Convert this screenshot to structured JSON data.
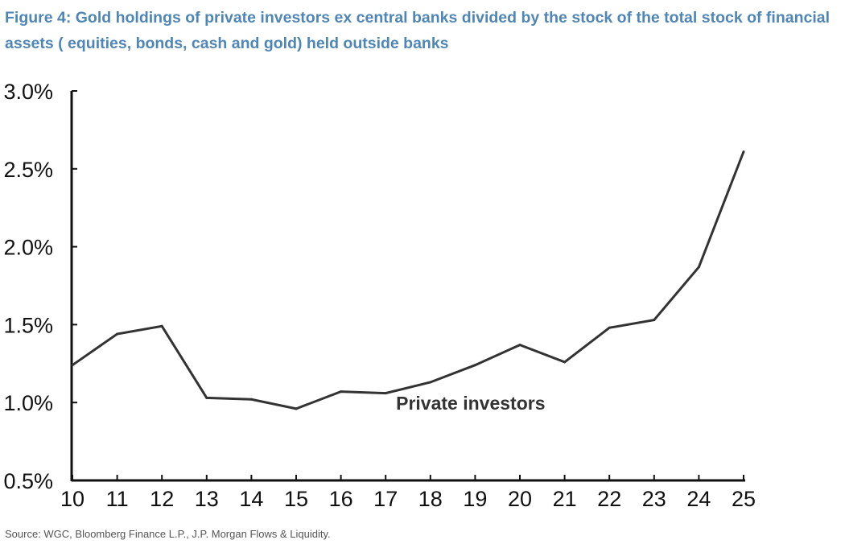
{
  "chart_data": {
    "type": "line",
    "title": "Figure 4: Gold holdings of private investors ex central banks divided by the stock of the total stock of financial assets ( equities, bonds, cash and gold) held outside banks",
    "xlabel": "",
    "ylabel": "",
    "x": [
      "10",
      "11",
      "12",
      "13",
      "14",
      "15",
      "16",
      "17",
      "18",
      "19",
      "20",
      "21",
      "22",
      "23",
      "24",
      "25"
    ],
    "series": [
      {
        "name": "Private investors",
        "values": [
          1.24,
          1.44,
          1.49,
          1.03,
          1.02,
          0.96,
          1.07,
          1.06,
          1.13,
          1.24,
          1.37,
          1.26,
          1.48,
          1.53,
          1.87,
          2.61
        ],
        "color": "#333333"
      }
    ],
    "ylim": [
      0.5,
      3.0
    ],
    "yticks": [
      0.5,
      1.0,
      1.5,
      2.0,
      2.5,
      3.0
    ],
    "ytick_labels": [
      "0.5%",
      "1.0%",
      "1.5%",
      "2.0%",
      "2.5%",
      "3.0%"
    ],
    "grid": false,
    "annotation": {
      "text": "Private investors",
      "x": "18.9",
      "y": 1.0
    },
    "source": "Source: WGC, Bloomberg Finance L.P., J.P. Morgan Flows & Liquidity."
  }
}
